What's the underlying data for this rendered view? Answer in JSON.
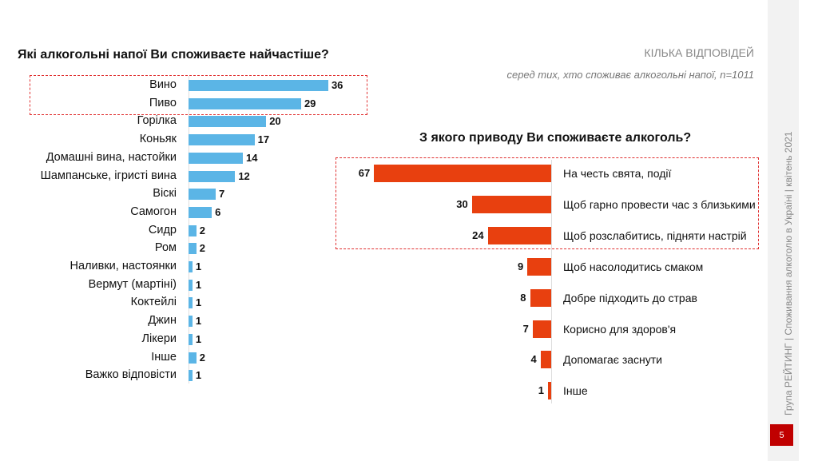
{
  "header": {
    "multi_answer": "КІЛЬКА ВІДПОВІДЕЙ",
    "base_note": "серед тих, хто споживає алкогольні напої, n=1011"
  },
  "sidebar": {
    "footer": "Група РЕЙТИНГ | Споживання алкоголю в Україні | квітень 2021",
    "page_number": "5"
  },
  "chart_data": [
    {
      "type": "bar",
      "orientation": "horizontal",
      "title": "Які алкогольні напої Ви споживаєте найчастіше?",
      "color": "#5bb5e6",
      "categories": [
        "Вино",
        "Пиво",
        "Горілка",
        "Коньяк",
        "Домашні вина, настойки",
        "Шампанське, ігристі вина",
        "Віскі",
        "Самогон",
        "Сидр",
        "Ром",
        "Наливки, настоянки",
        "Вермут (мартіні)",
        "Коктейлі",
        "Джин",
        "Лікери",
        "Інше",
        "Важко відповісти"
      ],
      "values": [
        36,
        29,
        20,
        17,
        14,
        12,
        7,
        6,
        2,
        2,
        1,
        1,
        1,
        1,
        1,
        2,
        1
      ],
      "highlighted": [
        "Вино",
        "Пиво"
      ]
    },
    {
      "type": "bar",
      "orientation": "horizontal",
      "direction": "leftward",
      "title": "З якого приводу Ви споживаєте алкоголь?",
      "color": "#e8400f",
      "categories": [
        "На честь свята, події",
        "Щоб гарно провести час з близькими",
        "Щоб розслабитись, підняти настрій",
        "Щоб насолодитись смаком",
        "Добре підходить до страв",
        "Корисно для здоров'я",
        "Допомагає заснути",
        "Інше"
      ],
      "values": [
        67,
        30,
        24,
        9,
        8,
        7,
        4,
        1
      ],
      "highlighted": [
        "На честь свята, події",
        "Щоб гарно провести час з близькими",
        "Щоб розслабитись, підняти настрій"
      ]
    }
  ]
}
